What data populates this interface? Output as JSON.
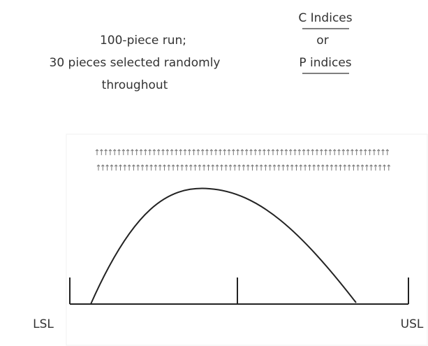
{
  "text_left": [
    "100-piece run;",
    "30 pieces selected randomly",
    "throughout"
  ],
  "text_right": [
    "C Indices",
    "or",
    "P indices"
  ],
  "labels": {
    "lsl": "LSL",
    "usl": "USL"
  }
}
